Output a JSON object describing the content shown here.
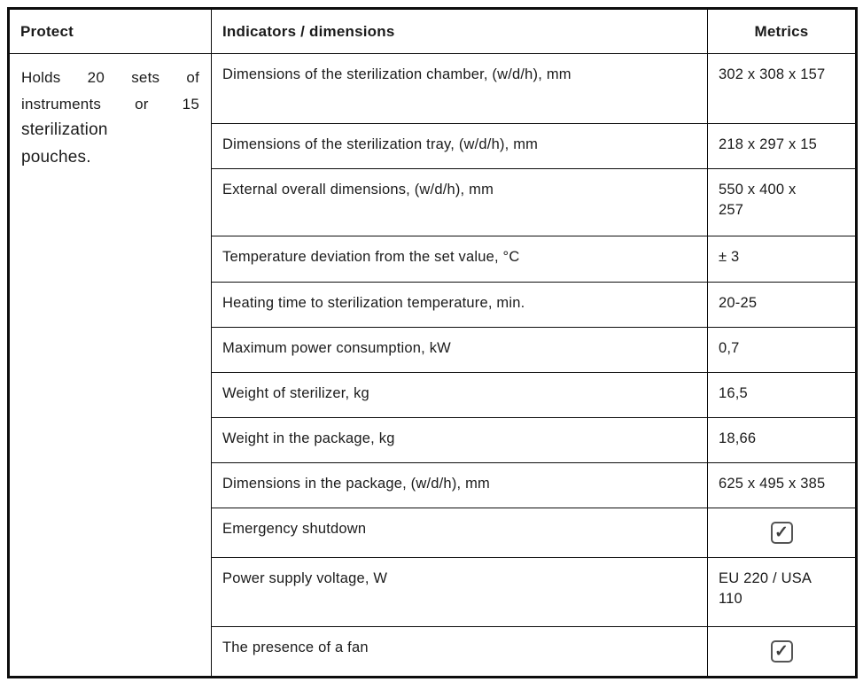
{
  "table": {
    "headers": {
      "protect": "Protect",
      "indicators": "Indicators / dimensions",
      "metrics": "Metrics"
    },
    "protect_note": {
      "text_small": "Holds 20 sets of instruments or 15",
      "text_large_line1": "sterilization",
      "text_large_line2": "pouches."
    },
    "rows": [
      {
        "indicator": "Dimensions of the sterilization chamber, (w/d/h), mm",
        "metric": "302 x 308 x 157",
        "type": "text"
      },
      {
        "indicator": "Dimensions of the sterilization tray, (w/d/h), mm",
        "metric": "218 x 297 x 15",
        "type": "text"
      },
      {
        "indicator": "External overall dimensions, (w/d/h), mm",
        "metric": "550 x 400 x\n257",
        "type": "text"
      },
      {
        "indicator": "Temperature deviation from the set value, °C",
        "metric": "± 3",
        "type": "text"
      },
      {
        "indicator": "Heating time to sterilization temperature, min.",
        "metric": "20-25",
        "type": "text"
      },
      {
        "indicator": "Maximum power consumption, kW",
        "metric": "0,7",
        "type": "text"
      },
      {
        "indicator": "Weight of sterilizer, kg",
        "metric": "16,5",
        "type": "text"
      },
      {
        "indicator": "Weight in the package, kg",
        "metric": "18,66",
        "type": "text"
      },
      {
        "indicator": "Dimensions in the package, (w/d/h), mm",
        "metric": "625 x 495 x 385",
        "type": "text"
      },
      {
        "indicator": "Emergency shutdown",
        "metric": "checked",
        "type": "checkbox"
      },
      {
        "indicator": "Power supply voltage, W",
        "metric": "EU 220 / USA\n110",
        "type": "text"
      },
      {
        "indicator": "The presence of a fan",
        "metric": "checked",
        "type": "checkbox"
      }
    ],
    "checkbox_glyph": "✓",
    "colors": {
      "border": "#0d0d0d",
      "text": "#1b1b1b",
      "checkbox_border": "#555555",
      "checkbox_check": "#3f3f3f"
    }
  }
}
